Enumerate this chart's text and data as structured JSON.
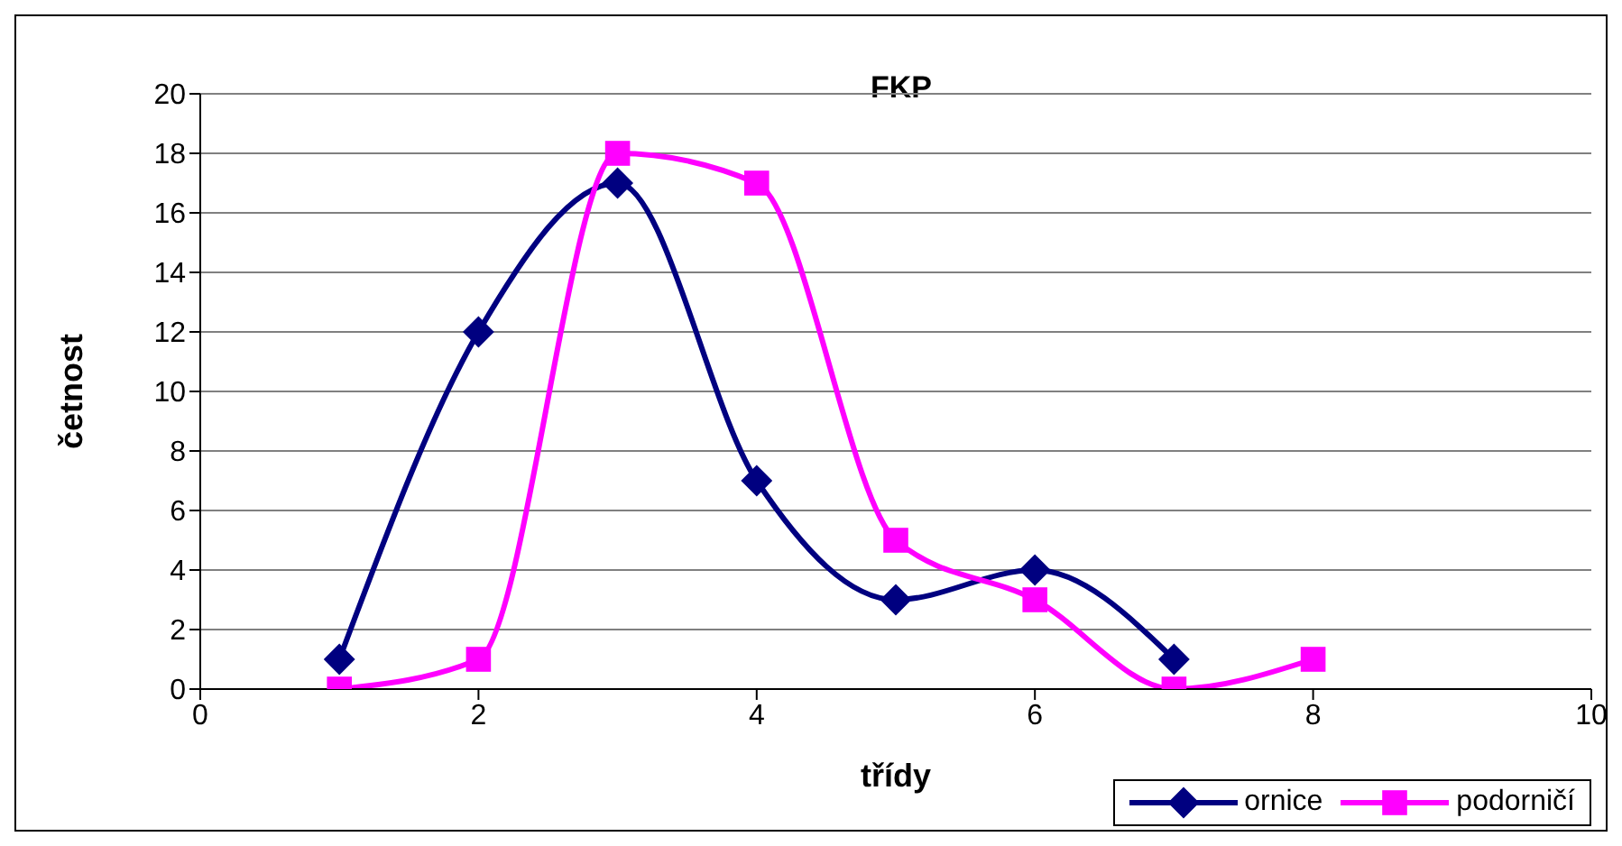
{
  "chart_data": {
    "type": "line",
    "title": "FKP",
    "xlabel": "třídy",
    "ylabel": "četnost",
    "xlim": [
      0,
      10
    ],
    "xticks": [
      0,
      2,
      4,
      6,
      8,
      10
    ],
    "ylim": [
      0,
      20
    ],
    "yticks": [
      0,
      2,
      4,
      6,
      8,
      10,
      12,
      14,
      16,
      18,
      20
    ],
    "grid": "y",
    "legend": "bottom right",
    "line_style": "solid",
    "series": [
      {
        "name": "ornice",
        "color": "#000080",
        "marker": "diamond",
        "x": [
          1,
          2,
          3,
          4,
          5,
          6,
          7
        ],
        "values": [
          1,
          12,
          17,
          7,
          3,
          4,
          1
        ]
      },
      {
        "name": "podorničí",
        "color": "#ff00ff",
        "marker": "square",
        "x": [
          1,
          2,
          3,
          4,
          5,
          6,
          7,
          8
        ],
        "values": [
          0,
          1,
          18,
          17,
          5,
          3,
          0,
          1
        ]
      }
    ]
  }
}
